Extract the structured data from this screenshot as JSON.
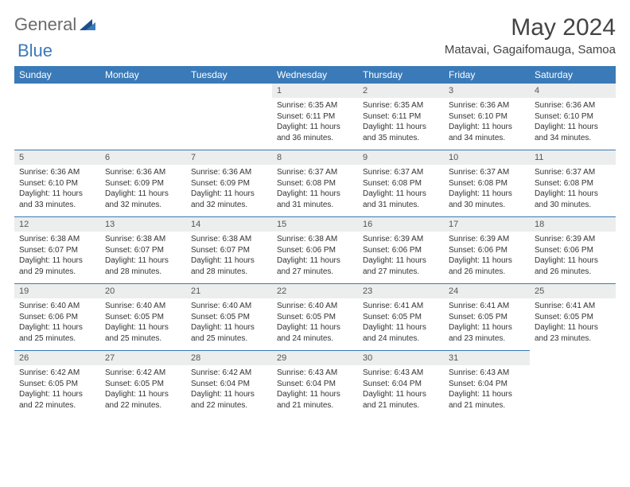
{
  "brand": {
    "part1": "General",
    "part2": "Blue"
  },
  "title": "May 2024",
  "location": "Matavai, Gagaifomauga, Samoa",
  "colors": {
    "header_bg": "#3a7ab8",
    "header_fg": "#ffffff",
    "daynum_bg": "#eceded",
    "text": "#333333",
    "logo_gray": "#6b6b6b",
    "logo_blue": "#3a7ab8"
  },
  "fonts": {
    "title_pt": 30,
    "location_pt": 15,
    "weekday_pt": 12,
    "daynum_pt": 11,
    "body_pt": 10
  },
  "weekdays": [
    "Sunday",
    "Monday",
    "Tuesday",
    "Wednesday",
    "Thursday",
    "Friday",
    "Saturday"
  ],
  "start_weekday_index": 3,
  "days": [
    {
      "n": 1,
      "sunrise": "6:35 AM",
      "sunset": "6:11 PM",
      "daylight": "11 hours and 36 minutes."
    },
    {
      "n": 2,
      "sunrise": "6:35 AM",
      "sunset": "6:11 PM",
      "daylight": "11 hours and 35 minutes."
    },
    {
      "n": 3,
      "sunrise": "6:36 AM",
      "sunset": "6:10 PM",
      "daylight": "11 hours and 34 minutes."
    },
    {
      "n": 4,
      "sunrise": "6:36 AM",
      "sunset": "6:10 PM",
      "daylight": "11 hours and 34 minutes."
    },
    {
      "n": 5,
      "sunrise": "6:36 AM",
      "sunset": "6:10 PM",
      "daylight": "11 hours and 33 minutes."
    },
    {
      "n": 6,
      "sunrise": "6:36 AM",
      "sunset": "6:09 PM",
      "daylight": "11 hours and 32 minutes."
    },
    {
      "n": 7,
      "sunrise": "6:36 AM",
      "sunset": "6:09 PM",
      "daylight": "11 hours and 32 minutes."
    },
    {
      "n": 8,
      "sunrise": "6:37 AM",
      "sunset": "6:08 PM",
      "daylight": "11 hours and 31 minutes."
    },
    {
      "n": 9,
      "sunrise": "6:37 AM",
      "sunset": "6:08 PM",
      "daylight": "11 hours and 31 minutes."
    },
    {
      "n": 10,
      "sunrise": "6:37 AM",
      "sunset": "6:08 PM",
      "daylight": "11 hours and 30 minutes."
    },
    {
      "n": 11,
      "sunrise": "6:37 AM",
      "sunset": "6:08 PM",
      "daylight": "11 hours and 30 minutes."
    },
    {
      "n": 12,
      "sunrise": "6:38 AM",
      "sunset": "6:07 PM",
      "daylight": "11 hours and 29 minutes."
    },
    {
      "n": 13,
      "sunrise": "6:38 AM",
      "sunset": "6:07 PM",
      "daylight": "11 hours and 28 minutes."
    },
    {
      "n": 14,
      "sunrise": "6:38 AM",
      "sunset": "6:07 PM",
      "daylight": "11 hours and 28 minutes."
    },
    {
      "n": 15,
      "sunrise": "6:38 AM",
      "sunset": "6:06 PM",
      "daylight": "11 hours and 27 minutes."
    },
    {
      "n": 16,
      "sunrise": "6:39 AM",
      "sunset": "6:06 PM",
      "daylight": "11 hours and 27 minutes."
    },
    {
      "n": 17,
      "sunrise": "6:39 AM",
      "sunset": "6:06 PM",
      "daylight": "11 hours and 26 minutes."
    },
    {
      "n": 18,
      "sunrise": "6:39 AM",
      "sunset": "6:06 PM",
      "daylight": "11 hours and 26 minutes."
    },
    {
      "n": 19,
      "sunrise": "6:40 AM",
      "sunset": "6:06 PM",
      "daylight": "11 hours and 25 minutes."
    },
    {
      "n": 20,
      "sunrise": "6:40 AM",
      "sunset": "6:05 PM",
      "daylight": "11 hours and 25 minutes."
    },
    {
      "n": 21,
      "sunrise": "6:40 AM",
      "sunset": "6:05 PM",
      "daylight": "11 hours and 25 minutes."
    },
    {
      "n": 22,
      "sunrise": "6:40 AM",
      "sunset": "6:05 PM",
      "daylight": "11 hours and 24 minutes."
    },
    {
      "n": 23,
      "sunrise": "6:41 AM",
      "sunset": "6:05 PM",
      "daylight": "11 hours and 24 minutes."
    },
    {
      "n": 24,
      "sunrise": "6:41 AM",
      "sunset": "6:05 PM",
      "daylight": "11 hours and 23 minutes."
    },
    {
      "n": 25,
      "sunrise": "6:41 AM",
      "sunset": "6:05 PM",
      "daylight": "11 hours and 23 minutes."
    },
    {
      "n": 26,
      "sunrise": "6:42 AM",
      "sunset": "6:05 PM",
      "daylight": "11 hours and 22 minutes."
    },
    {
      "n": 27,
      "sunrise": "6:42 AM",
      "sunset": "6:05 PM",
      "daylight": "11 hours and 22 minutes."
    },
    {
      "n": 28,
      "sunrise": "6:42 AM",
      "sunset": "6:04 PM",
      "daylight": "11 hours and 22 minutes."
    },
    {
      "n": 29,
      "sunrise": "6:43 AM",
      "sunset": "6:04 PM",
      "daylight": "11 hours and 21 minutes."
    },
    {
      "n": 30,
      "sunrise": "6:43 AM",
      "sunset": "6:04 PM",
      "daylight": "11 hours and 21 minutes."
    },
    {
      "n": 31,
      "sunrise": "6:43 AM",
      "sunset": "6:04 PM",
      "daylight": "11 hours and 21 minutes."
    }
  ],
  "labels": {
    "sunrise": "Sunrise:",
    "sunset": "Sunset:",
    "daylight": "Daylight:"
  }
}
